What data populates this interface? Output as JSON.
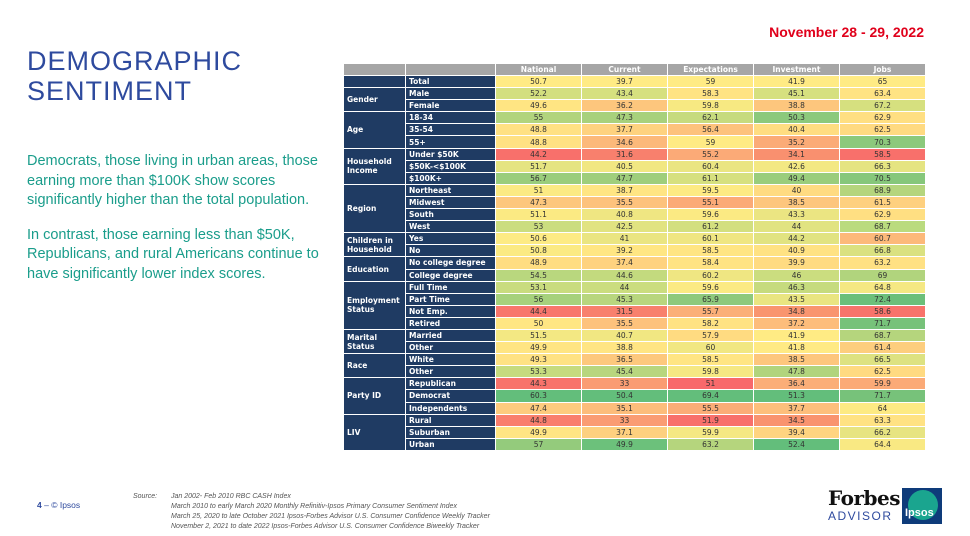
{
  "date": "November 28 - 29, 2022",
  "title_line1": "DEMOGRAPHIC",
  "title_line2": "SENTIMENT",
  "paragraph1": "Democrats, those living in urban areas, those earning more than $100K show scores significantly higher than the total population.",
  "paragraph2": "In contrast, those earning less than $50K, Republicans, and rural Americans continue to have significantly lower index scores.",
  "table": {
    "columns": [
      "National",
      "Current",
      "Expectations",
      "Investment",
      "Jobs"
    ],
    "groups": [
      {
        "name": "",
        "rows": [
          {
            "label": "Total",
            "values": [
              "50.7",
              "39.7",
              "59",
              "41.9",
              "65"
            ],
            "colors": [
              "#ffeb84",
              "#ffeb84",
              "#ffeb84",
              "#ffeb84",
              "#ffeb84"
            ]
          }
        ]
      },
      {
        "name": "Gender",
        "rows": [
          {
            "label": "Male",
            "values": [
              "52.2",
              "43.4",
              "58.3",
              "45.1",
              "63.4"
            ],
            "colors": [
              "#d3df7f",
              "#d6e07f",
              "#ffe383",
              "#d6e07f",
              "#ffe383"
            ]
          },
          {
            "label": "Female",
            "values": [
              "49.6",
              "36.2",
              "59.8",
              "38.8",
              "67.2"
            ],
            "colors": [
              "#ffe583",
              "#fdc67d",
              "#f7e982",
              "#fdc67d",
              "#d6e07f"
            ]
          }
        ]
      },
      {
        "name": "Age",
        "rows": [
          {
            "label": "18-34",
            "values": [
              "55",
              "47.3",
              "62.1",
              "50.3",
              "62.9"
            ],
            "colors": [
              "#b1d47d",
              "#a8d17c",
              "#c6db7e",
              "#8cc97c",
              "#ffdf82"
            ]
          },
          {
            "label": "35-54",
            "values": [
              "48.8",
              "37.7",
              "56.4",
              "40.4",
              "62.5"
            ],
            "colors": [
              "#ffe183",
              "#fed27f",
              "#fdc27c",
              "#ffdd81",
              "#ffda81"
            ]
          },
          {
            "label": "55+",
            "values": [
              "48.8",
              "34.6",
              "59",
              "35.2",
              "70.3"
            ],
            "colors": [
              "#ffe183",
              "#fcb97a",
              "#ffeb84",
              "#fbab77",
              "#8cc97c"
            ]
          }
        ]
      },
      {
        "name": "Household Income",
        "rows": [
          {
            "label": "Under $50K",
            "values": [
              "44.2",
              "31.6",
              "55.2",
              "34.1",
              "58.5"
            ],
            "colors": [
              "#f8706b",
              "#f8806d",
              "#fbaa77",
              "#f9906f",
              "#f8706b"
            ]
          },
          {
            "label": "$50K-<$100K",
            "values": [
              "51.7",
              "40.5",
              "60.4",
              "42.6",
              "66.3"
            ],
            "colors": [
              "#e5e481",
              "#f1e782",
              "#eae582",
              "#f3e883",
              "#e5e481"
            ]
          },
          {
            "label": "$100K+",
            "values": [
              "56.7",
              "47.7",
              "61.1",
              "49.4",
              "70.5"
            ],
            "colors": [
              "#9acd7c",
              "#9fce7c",
              "#d6e07f",
              "#9acd7c",
              "#86c77b"
            ]
          }
        ]
      },
      {
        "name": "Region",
        "rows": [
          {
            "label": "Northeast",
            "values": [
              "51",
              "38.7",
              "59.5",
              "40",
              "68.9"
            ],
            "colors": [
              "#fbea83",
              "#ffe583",
              "#fdea83",
              "#ffdb81",
              "#b5d57d"
            ]
          },
          {
            "label": "Midwest",
            "values": [
              "47.3",
              "35.5",
              "55.1",
              "38.5",
              "61.5"
            ],
            "colors": [
              "#fdc77d",
              "#fdc27c",
              "#fbaa77",
              "#fdc67d",
              "#fed07f"
            ]
          },
          {
            "label": "South",
            "values": [
              "51.1",
              "40.8",
              "59.6",
              "43.3",
              "62.9"
            ],
            "colors": [
              "#fbea83",
              "#efe682",
              "#fbea83",
              "#ebe582",
              "#ffdf82"
            ]
          },
          {
            "label": "West",
            "values": [
              "53",
              "42.5",
              "61.2",
              "44",
              "68.7"
            ],
            "colors": [
              "#cbdd7f",
              "#e1e381",
              "#d3df7f",
              "#e1e381",
              "#badb7e"
            ]
          }
        ]
      },
      {
        "name": "Children in Household",
        "rows": [
          {
            "label": "Yes",
            "values": [
              "50.6",
              "41",
              "60.1",
              "44.2",
              "60.7"
            ],
            "colors": [
              "#fdeb84",
              "#eae582",
              "#efe682",
              "#e1e381",
              "#fcb97a"
            ]
          },
          {
            "label": "No",
            "values": [
              "50.8",
              "39.2",
              "58.5",
              "40.9",
              "66.8"
            ],
            "colors": [
              "#fbea83",
              "#ffe683",
              "#ffe583",
              "#ffe283",
              "#dae180"
            ]
          }
        ]
      },
      {
        "name": "Education",
        "rows": [
          {
            "label": "No college degree",
            "values": [
              "48.9",
              "37.4",
              "58.4",
              "39.9",
              "63.2"
            ],
            "colors": [
              "#ffdd81",
              "#fed27f",
              "#ffe383",
              "#ffdb81",
              "#ffe183"
            ]
          },
          {
            "label": "College degree",
            "values": [
              "54.5",
              "44.6",
              "60.2",
              "46",
              "69"
            ],
            "colors": [
              "#b9d77e",
              "#c3da7e",
              "#efe682",
              "#cbdd7f",
              "#b1d47d"
            ]
          }
        ]
      },
      {
        "name": "Employment Status",
        "rows": [
          {
            "label": "Full Time",
            "values": [
              "53.1",
              "44",
              "59.6",
              "46.3",
              "64.8"
            ],
            "colors": [
              "#c9dc7f",
              "#cbdd7f",
              "#fbea83",
              "#c6db7e",
              "#f5e883"
            ]
          },
          {
            "label": "Part Time",
            "values": [
              "56",
              "45.3",
              "65.9",
              "43.5",
              "72.4"
            ],
            "colors": [
              "#a6d17c",
              "#b8d67e",
              "#8ec97c",
              "#e9e581",
              "#6cbf7a"
            ]
          },
          {
            "label": "Not Emp.",
            "values": [
              "44.4",
              "31.5",
              "55.7",
              "34.8",
              "58.6"
            ],
            "colors": [
              "#f8766c",
              "#f8806d",
              "#fbaf78",
              "#f9956f",
              "#f8736b"
            ]
          },
          {
            "label": "Retired",
            "values": [
              "50",
              "35.5",
              "58.2",
              "37.2",
              "71.7"
            ],
            "colors": [
              "#ffe683",
              "#fdc27c",
              "#ffe283",
              "#fdbd7b",
              "#77c27a"
            ]
          }
        ]
      },
      {
        "name": "Marital Status",
        "rows": [
          {
            "label": "Married",
            "values": [
              "51.5",
              "40.7",
              "57.9",
              "41.9",
              "68.7"
            ],
            "colors": [
              "#f3e883",
              "#f1e782",
              "#ffdb81",
              "#ffeb84",
              "#b5d57d"
            ]
          },
          {
            "label": "Other",
            "values": [
              "49.9",
              "38.8",
              "60",
              "41.8",
              "61.4"
            ],
            "colors": [
              "#ffe583",
              "#ffe583",
              "#f1e782",
              "#ffea84",
              "#fdce7e"
            ]
          }
        ]
      },
      {
        "name": "Race",
        "rows": [
          {
            "label": "White",
            "values": [
              "49.3",
              "36.5",
              "58.5",
              "38.5",
              "66.5"
            ],
            "colors": [
              "#ffe283",
              "#fdc87d",
              "#ffe583",
              "#fdc67d",
              "#dde281"
            ]
          },
          {
            "label": "Other",
            "values": [
              "53.3",
              "45.4",
              "59.8",
              "47.8",
              "62.5"
            ],
            "colors": [
              "#c6db7e",
              "#b8d67e",
              "#f5e883",
              "#b1d47d",
              "#ffda81"
            ]
          }
        ]
      },
      {
        "name": "Party ID",
        "rows": [
          {
            "label": "Republican",
            "values": [
              "44.3",
              "33",
              "51",
              "36.4",
              "59.9"
            ],
            "colors": [
              "#f8736b",
              "#fa9c73",
              "#f8696b",
              "#fbae78",
              "#fbaa77"
            ]
          },
          {
            "label": "Democrat",
            "values": [
              "60.3",
              "50.4",
              "69.4",
              "51.3",
              "71.7"
            ],
            "colors": [
              "#63be7b",
              "#63be7b",
              "#63be7b",
              "#63be7b",
              "#77c27a"
            ]
          },
          {
            "label": "Independents",
            "values": [
              "47.4",
              "35.1",
              "55.5",
              "37.7",
              "64"
            ],
            "colors": [
              "#fdcb7e",
              "#fcbd7b",
              "#fbad77",
              "#fdbf7c",
              "#fdea83"
            ]
          }
        ]
      },
      {
        "name": "LIV",
        "rows": [
          {
            "label": "Rural",
            "values": [
              "44.8",
              "33",
              "51.9",
              "34.5",
              "63.3"
            ],
            "colors": [
              "#f97e6d",
              "#fa9c73",
              "#f8706b",
              "#f9936f",
              "#ffe283"
            ]
          },
          {
            "label": "Suburban",
            "values": [
              "49.9",
              "37.1",
              "59.9",
              "39.4",
              "66.2"
            ],
            "colors": [
              "#ffe583",
              "#fdd07f",
              "#f5e883",
              "#ffd480",
              "#e7e481"
            ]
          },
          {
            "label": "Urban",
            "values": [
              "57",
              "49.9",
              "63.2",
              "52.4",
              "64.4"
            ],
            "colors": [
              "#94cb7c",
              "#6cc17b",
              "#b5d57d",
              "#63be7b",
              "#f9e983"
            ]
          }
        ]
      }
    ]
  },
  "source_label": "Source:",
  "source_lines": [
    "Jan 2002- Feb 2010 RBC CASH Index",
    "March 2010 to early March 2020 Monthly Refinitiv-Ipsos Primary Consumer Sentiment Index",
    "March 25, 2020 to late October 2021 Ipsos-Forbes Advisor U.S. Consumer Confidence Weekly Tracker",
    "November 2, 2021 to date 2022 Ipsos-Forbes Advisor U.S. Consumer Confidence Biweekly Tracker"
  ],
  "page_number": "4",
  "footer_separator": "–",
  "copyright": "© Ipsos",
  "logo_forbes": "Forbes",
  "logo_advisor": "ADVISOR",
  "logo_ipsos": "Ipsos"
}
